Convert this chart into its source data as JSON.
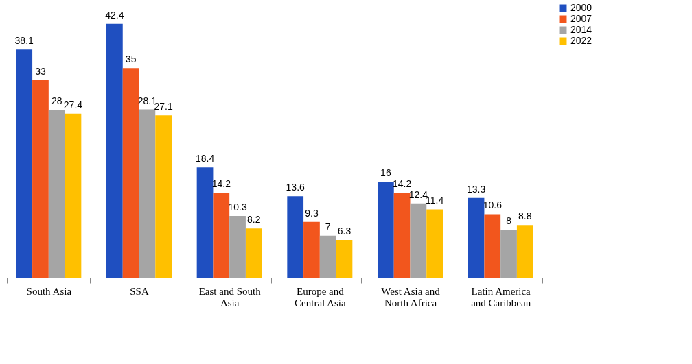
{
  "chart_data": {
    "type": "bar",
    "categories": [
      "South Asia",
      "SSA",
      "East and South Asia",
      "Europe and Central Asia",
      "West Asia and North Africa",
      "Latin America and Caribbean"
    ],
    "series": [
      {
        "name": "2000",
        "color": "#1f4fc0",
        "values": [
          38.1,
          42.4,
          18.4,
          13.6,
          16,
          13.3
        ]
      },
      {
        "name": "2007",
        "color": "#f2561d",
        "values": [
          33,
          35,
          14.2,
          9.3,
          14.2,
          10.6
        ]
      },
      {
        "name": "2014",
        "color": "#a5a5a5",
        "values": [
          28,
          28.1,
          10.3,
          7,
          12.4,
          8
        ]
      },
      {
        "name": "2022",
        "color": "#ffc000",
        "values": [
          27.4,
          27.1,
          8.2,
          6.3,
          11.4,
          8.8
        ]
      }
    ],
    "data_labels": true,
    "grid": false,
    "legend": "right"
  }
}
